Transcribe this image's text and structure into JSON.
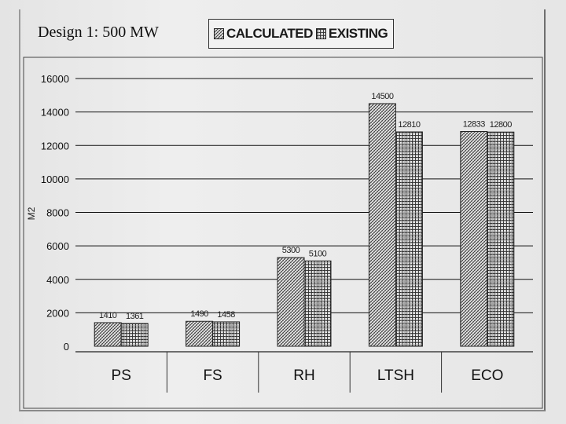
{
  "chart_data": {
    "type": "bar",
    "title": "Design 1: 500 MW",
    "ylabel": "M2",
    "xlabel": "",
    "ylim": [
      0,
      16000
    ],
    "yticks": [
      0,
      2000,
      4000,
      6000,
      8000,
      10000,
      12000,
      14000,
      16000
    ],
    "categories": [
      "PS",
      "FS",
      "RH",
      "LTSH",
      "ECO"
    ],
    "series": [
      {
        "name": "CALCULATED",
        "values": [
          1410,
          1490,
          5300,
          14500,
          12833
        ],
        "labels": [
          "1410",
          "1490",
          "5300",
          "14500",
          "12833"
        ]
      },
      {
        "name": "EXISTING",
        "values": [
          1361,
          1458,
          5100,
          12810,
          12800
        ],
        "labels": [
          "1361",
          "1458",
          "5100",
          "12810",
          "12800"
        ]
      }
    ],
    "grid": true,
    "legend_position": "top-center"
  },
  "colors": {
    "calculated": "#555555",
    "existing": "#444444",
    "grid": "#000000"
  }
}
